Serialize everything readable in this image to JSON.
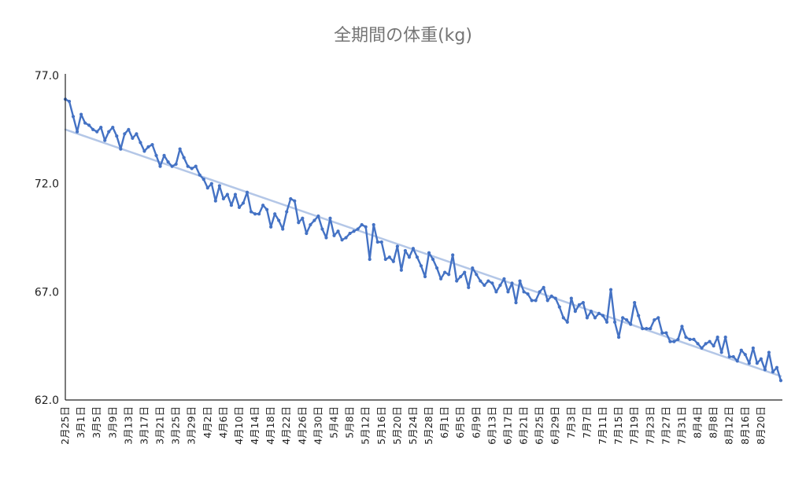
{
  "chart_data": {
    "type": "line",
    "title": "全期間の体重(kg)",
    "xlabel": "",
    "ylabel": "",
    "ylim": [
      62.0,
      77.0
    ],
    "yticks": [
      {
        "value": 62.0,
        "label": "62.0"
      },
      {
        "value": 67.0,
        "label": "67.0"
      },
      {
        "value": 72.0,
        "label": "72.0"
      },
      {
        "value": 77.0,
        "label": "77.0"
      }
    ],
    "grid": false,
    "legend": "none",
    "x_start_label": "2月25日",
    "x_end_label": "8月22日",
    "x_tick_labels": [
      "2月25日",
      "3月1日",
      "3月5日",
      "3月9日",
      "3月13日",
      "3月17日",
      "3月21日",
      "3月25日",
      "3月29日",
      "4月2日",
      "4月6日",
      "4月10日",
      "4月14日",
      "4月18日",
      "4月22日",
      "4月26日",
      "4月30日",
      "5月4日",
      "5月8日",
      "5月12日",
      "5月16日",
      "5月20日",
      "5月24日",
      "5月28日",
      "6月1日",
      "6月5日",
      "6月9日",
      "6月13日",
      "6月17日",
      "6月21日",
      "6月25日",
      "6月29日",
      "7月3日",
      "7月7日",
      "7月11日",
      "7月15日",
      "7月19日",
      "7月23日",
      "7月27日",
      "7月31日",
      "8月4日",
      "8月8日",
      "8月12日",
      "8月16日",
      "8月20日"
    ],
    "series": [
      {
        "color": "#4472C4",
        "values": [
          75.9,
          75.8,
          75.1,
          74.4,
          75.2,
          74.8,
          74.7,
          74.5,
          74.4,
          74.6,
          74.0,
          74.4,
          74.6,
          74.2,
          73.6,
          74.3,
          74.5,
          74.1,
          74.3,
          73.9,
          73.5,
          73.7,
          73.8,
          73.3,
          72.8,
          73.3,
          73.0,
          72.8,
          72.9,
          73.6,
          73.2,
          72.8,
          72.7,
          72.8,
          72.4,
          72.2,
          71.8,
          72.0,
          71.2,
          71.9,
          71.3,
          71.5,
          71.0,
          71.5,
          70.9,
          71.1,
          71.6,
          70.7,
          70.6,
          70.6,
          71.0,
          70.8,
          70.0,
          70.6,
          70.3,
          69.9,
          70.7,
          71.3,
          71.2,
          70.2,
          70.4,
          69.7,
          70.1,
          70.3,
          70.5,
          69.9,
          69.5,
          70.4,
          69.6,
          69.8,
          69.4,
          69.5,
          69.7,
          69.8,
          69.9,
          70.1,
          70.0,
          68.5,
          70.1,
          69.3,
          69.3,
          68.5,
          68.6,
          68.4,
          69.1,
          68.0,
          68.9,
          68.6,
          69.0,
          68.6,
          68.2,
          67.7,
          68.8,
          68.5,
          68.1,
          67.6,
          67.9,
          67.8,
          68.7,
          67.5,
          67.7,
          67.9,
          67.2,
          68.1,
          67.8,
          67.5,
          67.3,
          67.5,
          67.4,
          67.0,
          67.3,
          67.6,
          67.0,
          67.4,
          66.5,
          67.5,
          67.0,
          66.9,
          66.6,
          66.6,
          67.0,
          67.2,
          66.6,
          66.8,
          66.7,
          66.3,
          65.8,
          65.6,
          66.7,
          66.1,
          66.4,
          66.5,
          65.8,
          66.1,
          65.8,
          66.0,
          65.9,
          65.6,
          67.1,
          65.6,
          64.9,
          65.8,
          65.7,
          65.5,
          66.5,
          65.9,
          65.3,
          65.3,
          65.3,
          65.7,
          65.8,
          65.1,
          65.1,
          64.7,
          64.7,
          64.8,
          65.4,
          64.9,
          64.8,
          64.8,
          64.6,
          64.4,
          64.6,
          64.7,
          64.5,
          64.9,
          64.2,
          64.9,
          64.0,
          64.0,
          63.8,
          64.3,
          64.1,
          63.7,
          64.4,
          63.7,
          63.9,
          63.4,
          64.2,
          63.3,
          63.5,
          62.9
        ]
      }
    ],
    "trendline": {
      "color": "#B4C7E7",
      "start": 74.5,
      "end": 63.1
    }
  }
}
